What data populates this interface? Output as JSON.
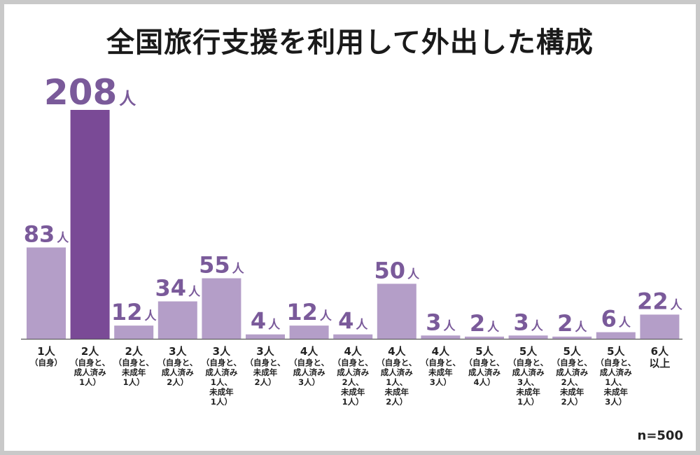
{
  "chart_data": {
    "type": "bar",
    "title": "全国旅行支援を利用して外出した構成",
    "unit": "人",
    "note": "n=500",
    "colors": {
      "normal": "#b49ec8",
      "highlight": "#7a4a96",
      "label": "#7a5a9a"
    },
    "highlight_index": 1,
    "categories": [
      {
        "main": "1人",
        "sub": [
          "（自身）"
        ]
      },
      {
        "main": "2人",
        "sub": [
          "（自身と、",
          "成人済み",
          "1人）"
        ]
      },
      {
        "main": "2人",
        "sub": [
          "（自身と、",
          "未成年",
          "1人）"
        ]
      },
      {
        "main": "3人",
        "sub": [
          "（自身と、",
          "成人済み",
          "2人）"
        ]
      },
      {
        "main": "3人",
        "sub": [
          "（自身と、",
          "成人済み",
          "1人、",
          "未成年",
          "1人）"
        ]
      },
      {
        "main": "3人",
        "sub": [
          "（自身と、",
          "未成年",
          "2人）"
        ]
      },
      {
        "main": "4人",
        "sub": [
          "（自身と、",
          "成人済み",
          "3人）"
        ]
      },
      {
        "main": "4人",
        "sub": [
          "（自身と、",
          "成人済み",
          "2人、",
          "未成年",
          "1人）"
        ]
      },
      {
        "main": "4人",
        "sub": [
          "（自身と、",
          "成人済み",
          "1人、",
          "未成年",
          "2人）"
        ]
      },
      {
        "main": "4人",
        "sub": [
          "（自身と、",
          "未成年",
          "3人）"
        ]
      },
      {
        "main": "5人",
        "sub": [
          "（自身と、",
          "成人済み",
          "4人）"
        ]
      },
      {
        "main": "5人",
        "sub": [
          "（自身と、",
          "成人済み",
          "3人、",
          "未成年",
          "1人）"
        ]
      },
      {
        "main": "5人",
        "sub": [
          "（自身と、",
          "成人済み",
          "2人、",
          "未成年",
          "2人）"
        ]
      },
      {
        "main": "5人",
        "sub": [
          "（自身と、",
          "成人済み",
          "1人、",
          "未成年",
          "3人）"
        ]
      },
      {
        "main": "6人",
        "sub": [
          "以上"
        ]
      }
    ],
    "values": [
      83,
      208,
      12,
      34,
      55,
      4,
      12,
      4,
      50,
      3,
      2,
      3,
      2,
      6,
      22
    ],
    "ylim": [
      0,
      208
    ]
  }
}
